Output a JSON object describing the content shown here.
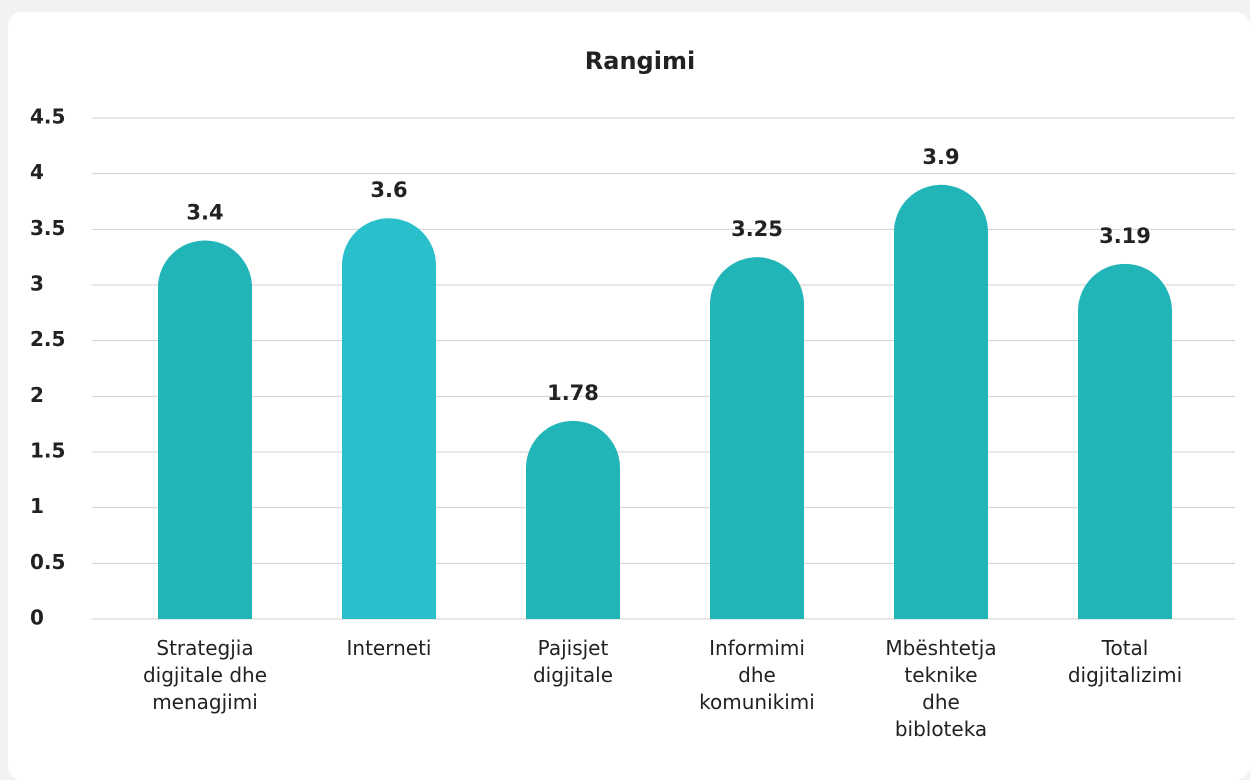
{
  "chart_data": {
    "type": "bar",
    "title": "Rangimi",
    "categories": [
      "Strategjia\ndigjitale dhe\nmenagjimi",
      "Interneti",
      "Pajisjet\ndigjitale",
      "Informimi\ndhe\nkomunikimi",
      "Mbështetja\nteknike\ndhe\nbibloteka",
      "Total\ndigjitalizimi"
    ],
    "values": [
      3.4,
      3.6,
      1.78,
      3.25,
      3.9,
      3.19
    ],
    "colors": [
      "#22b5b8",
      "#29c0cc",
      "#22b5b8",
      "#22b5b8",
      "#22b5b8",
      "#22b5b8"
    ],
    "ylim": [
      0,
      4.5
    ],
    "yticks": [
      0,
      0.5,
      1,
      1.5,
      2,
      2.5,
      3,
      3.5,
      4,
      4.5
    ],
    "grid": true
  }
}
